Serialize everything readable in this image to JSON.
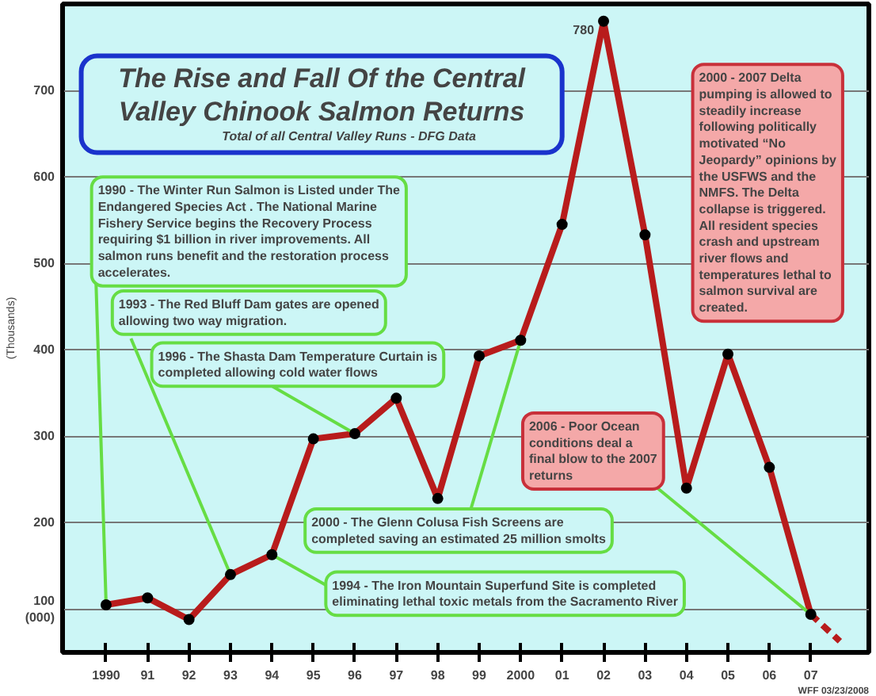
{
  "chart_data": {
    "type": "line",
    "title": "The Rise and Fall Of the Central Valley Chinook Salmon Returns",
    "subtitle": "Total of all Central Valley Runs  - DFG Data",
    "ylabel": "(Thousands)",
    "x": [
      1990,
      1991,
      1992,
      1993,
      1994,
      1995,
      1996,
      1997,
      1998,
      1999,
      2000,
      2001,
      2002,
      2003,
      2004,
      2005,
      2006,
      2007
    ],
    "xlim": [
      1988.95,
      2008.4
    ],
    "ylim": [
      50,
      800
    ],
    "xticks": [
      {
        "value": 1990,
        "label": "1990"
      },
      {
        "value": 1991,
        "label": "91"
      },
      {
        "value": 1992,
        "label": "92"
      },
      {
        "value": 1993,
        "label": "93"
      },
      {
        "value": 1994,
        "label": "94"
      },
      {
        "value": 1995,
        "label": "95"
      },
      {
        "value": 1996,
        "label": "96"
      },
      {
        "value": 1997,
        "label": "97"
      },
      {
        "value": 1998,
        "label": "98"
      },
      {
        "value": 1999,
        "label": "99"
      },
      {
        "value": 2000,
        "label": "2000"
      },
      {
        "value": 2001,
        "label": "01"
      },
      {
        "value": 2002,
        "label": "02"
      },
      {
        "value": 2003,
        "label": "03"
      },
      {
        "value": 2004,
        "label": "04"
      },
      {
        "value": 2005,
        "label": "05"
      },
      {
        "value": 2006,
        "label": "06"
      },
      {
        "value": 2007,
        "label": "07"
      }
    ],
    "yticks": [
      {
        "value": 100,
        "label": "100\n(000)"
      },
      200,
      300,
      400,
      500,
      600,
      700
    ],
    "grid": "y",
    "marker": "circle",
    "line_style": "solid",
    "series": [
      {
        "color": "#b81c1c",
        "values": [
          105,
          113,
          88,
          140,
          163,
          297,
          303,
          344,
          228,
          393,
          411,
          545,
          780,
          533,
          240,
          395,
          264,
          94
        ],
        "value_labels": [
          null,
          null,
          null,
          null,
          null,
          null,
          null,
          null,
          null,
          null,
          null,
          null,
          "780",
          null,
          null,
          null,
          null,
          null
        ]
      },
      {
        "color": "#b81c1c",
        "x": [
          2007,
          2007.7
        ],
        "values": [
          94,
          63
        ],
        "line_style": "dashed",
        "marker": "none"
      }
    ],
    "annotations": [
      {
        "text": "1990 - The Winter Run Salmon is Listed under The Endangered Species Act .  The National Marine Fishery Service begins the Recovery Process requiring $1 billion in river improvements.  All salmon runs benefit and the restoration process accelerates.",
        "x": 1990,
        "y": 105
      },
      {
        "text": "1993 - The Red Bluff Dam gates are opened allowing two way migration.",
        "x": 1993,
        "y": 140
      },
      {
        "text": "1996 - The Shasta Dam Temperature Curtain is completed allowing cold water flows",
        "x": 1996,
        "y": 303
      },
      {
        "text": "2000 - The Glenn Colusa Fish Screens are completed saving an estimated 25 million smolts",
        "x": 2000,
        "y": 411
      },
      {
        "text": "1994 - The Iron Mountain Superfund Site is completed eliminating lethal toxic metals from the Sacramento River",
        "x": 1994,
        "y": 163
      },
      {
        "text": "2006 - Poor Ocean conditions deal a final blow to the 2007 returns",
        "x": 2007,
        "y": 94
      },
      "2000 - 2007 Delta pumping is allowed to steadily increase following politically motivated “No Jeopardy” opinions by the USFWS and the NMFS.  The Delta collapse is triggered. All resident species crash and upstream river flows and temperatures lethal to salmon survival are created.",
      "WFF 03/23/2008"
    ]
  }
}
